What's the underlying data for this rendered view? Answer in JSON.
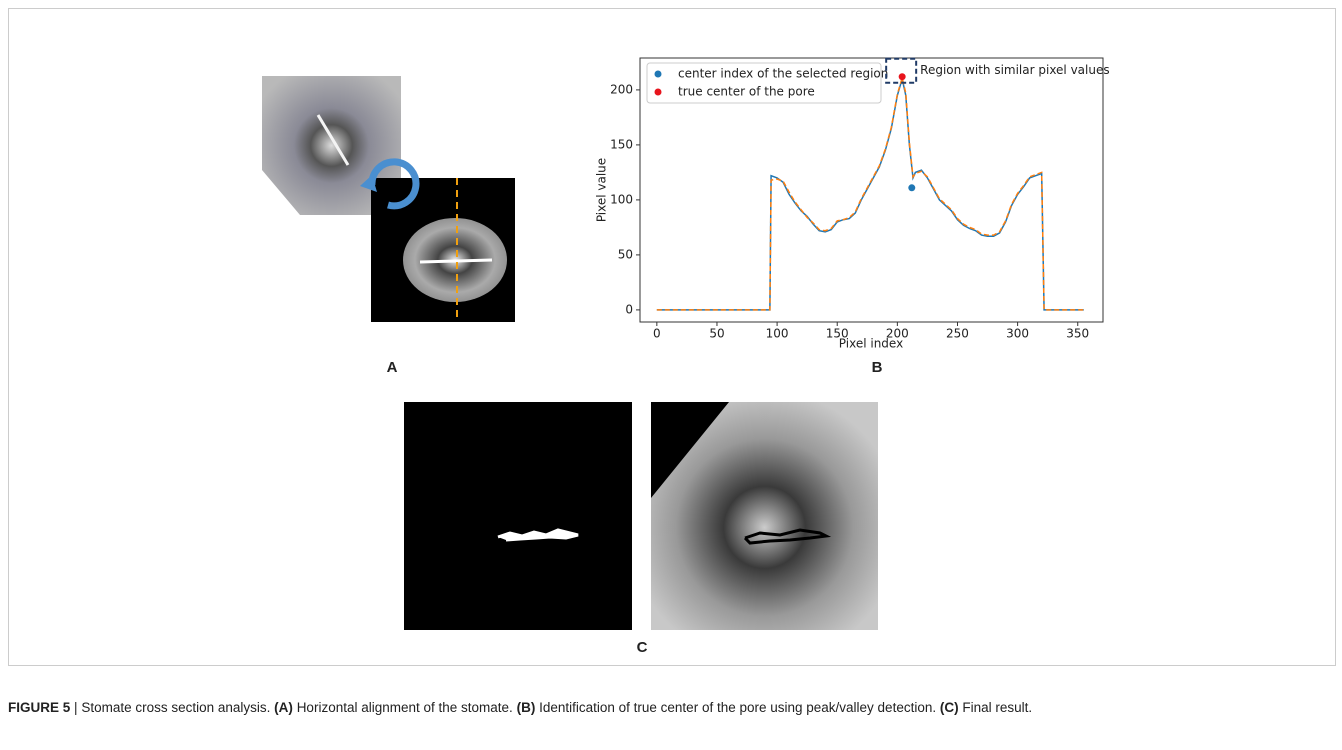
{
  "panel_labels": [
    "A",
    "B",
    "C"
  ],
  "caption": {
    "label": "FIGURE 5",
    "separator": "|",
    "title": "Stomate cross section analysis.",
    "parts": [
      {
        "tag": "(A)",
        "text": "Horizontal alignment of the stomate."
      },
      {
        "tag": "(B)",
        "text": "Identification of true center of the pore using peak/valley detection."
      },
      {
        "tag": "(C)",
        "text": "Final result."
      }
    ]
  },
  "chart_data": {
    "type": "line",
    "xlabel": "Pixel index",
    "ylabel": "Pixel value",
    "x": [
      0,
      94,
      95,
      100,
      105,
      110,
      115,
      120,
      125,
      130,
      135,
      140,
      145,
      150,
      155,
      160,
      165,
      170,
      175,
      180,
      185,
      190,
      195,
      200,
      204,
      207,
      210,
      213,
      215,
      220,
      225,
      230,
      235,
      240,
      245,
      250,
      255,
      260,
      265,
      270,
      275,
      280,
      285,
      290,
      295,
      300,
      305,
      310,
      315,
      320,
      322,
      355
    ],
    "series": [
      {
        "color": "#1f77b4",
        "dashed": false,
        "values": [
          0,
          0,
          122,
          120,
          116,
          105,
          97,
          90,
          85,
          78,
          72,
          71,
          73,
          80,
          82,
          83,
          88,
          100,
          110,
          120,
          130,
          145,
          165,
          195,
          210,
          195,
          150,
          120,
          125,
          127,
          120,
          110,
          100,
          95,
          90,
          82,
          77,
          74,
          72,
          68,
          67,
          67,
          70,
          80,
          95,
          105,
          112,
          120,
          122,
          124,
          0,
          0
        ]
      },
      {
        "color": "#ff7f0e",
        "dashed": true,
        "values": [
          0,
          0,
          118,
          119,
          117,
          107,
          98,
          91,
          84,
          79,
          73,
          72,
          74,
          81,
          82,
          84,
          89,
          101,
          111,
          121,
          131,
          146,
          166,
          196,
          211,
          197,
          152,
          121,
          124,
          126,
          121,
          111,
          101,
          96,
          91,
          83,
          78,
          75,
          73,
          69,
          68,
          68,
          71,
          81,
          96,
          106,
          113,
          121,
          123,
          125,
          0,
          0
        ]
      }
    ],
    "points": [
      {
        "name": "center index of the selected region",
        "color": "#1f77b4",
        "x": 212,
        "y": 111
      },
      {
        "name": "true center of the pore",
        "color": "#e8141c",
        "x": 204,
        "y": 212
      }
    ],
    "annotation": "Region with similar pixel values",
    "legend": "upper left",
    "xlim": [
      -14,
      371
    ],
    "ylim": [
      -11,
      229
    ],
    "xticks": [
      0,
      50,
      100,
      150,
      200,
      250,
      300,
      350
    ],
    "yticks": [
      0,
      50,
      100,
      150,
      200
    ]
  }
}
